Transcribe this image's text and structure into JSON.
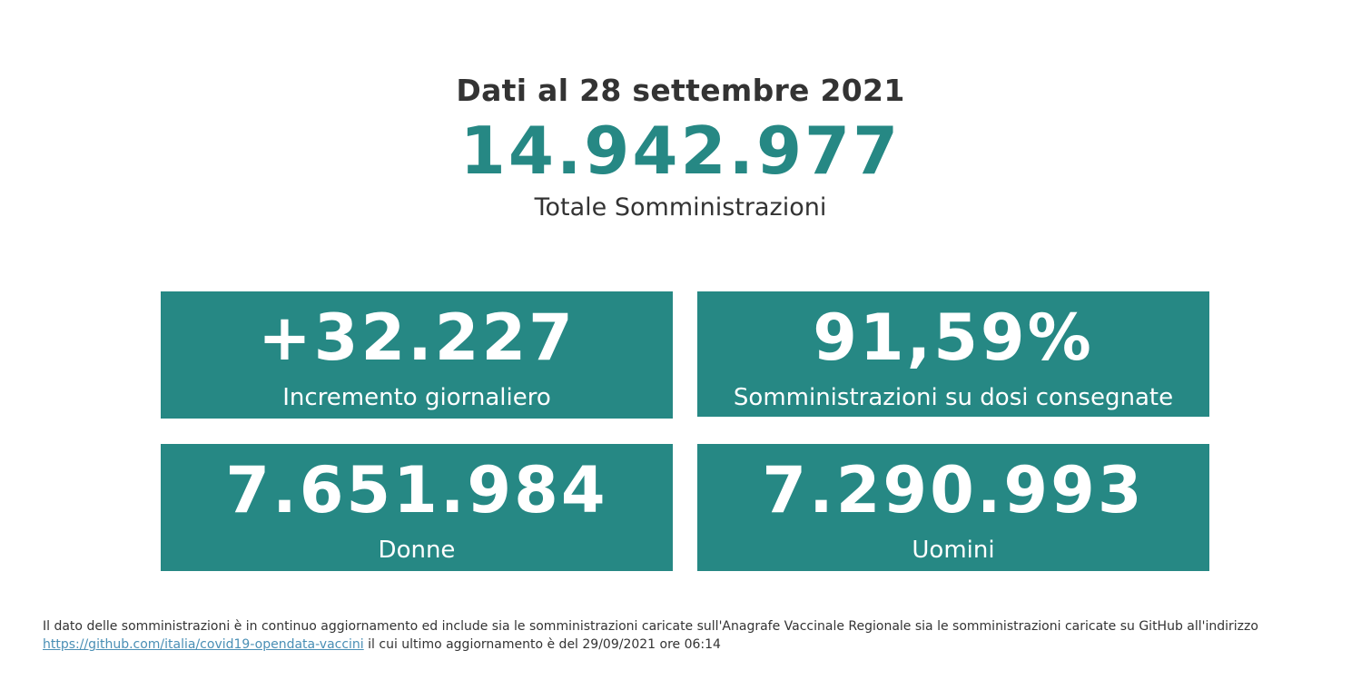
{
  "header": {
    "date_line": "Dati al 28 settembre 2021",
    "total_value": "14.942.977",
    "total_label": "Totale Somministrazioni"
  },
  "cards": [
    {
      "value": "+32.227",
      "label": "Incremento giornaliero"
    },
    {
      "value": "91,59%",
      "label": "Somministrazioni su dosi consegnate"
    },
    {
      "value": "7.651.984",
      "label": "Donne"
    },
    {
      "value": "7.290.993",
      "label": "Uomini"
    }
  ],
  "footer": {
    "text_before": "Il dato delle somministrazioni è in continuo aggiornamento ed include sia le somministrazioni caricate sull'Anagrafe Vaccinale Regionale sia le somministrazioni caricate su GitHub all'indirizzo",
    "link_text": "https://github.com/italia/covid19-opendata-vaccini",
    "text_after": "il cui ultimo aggiornamento è del 29/09/2021 ore 06:14"
  },
  "colors": {
    "accent": "#268884",
    "text": "#333333",
    "link": "#4a8fb5"
  }
}
